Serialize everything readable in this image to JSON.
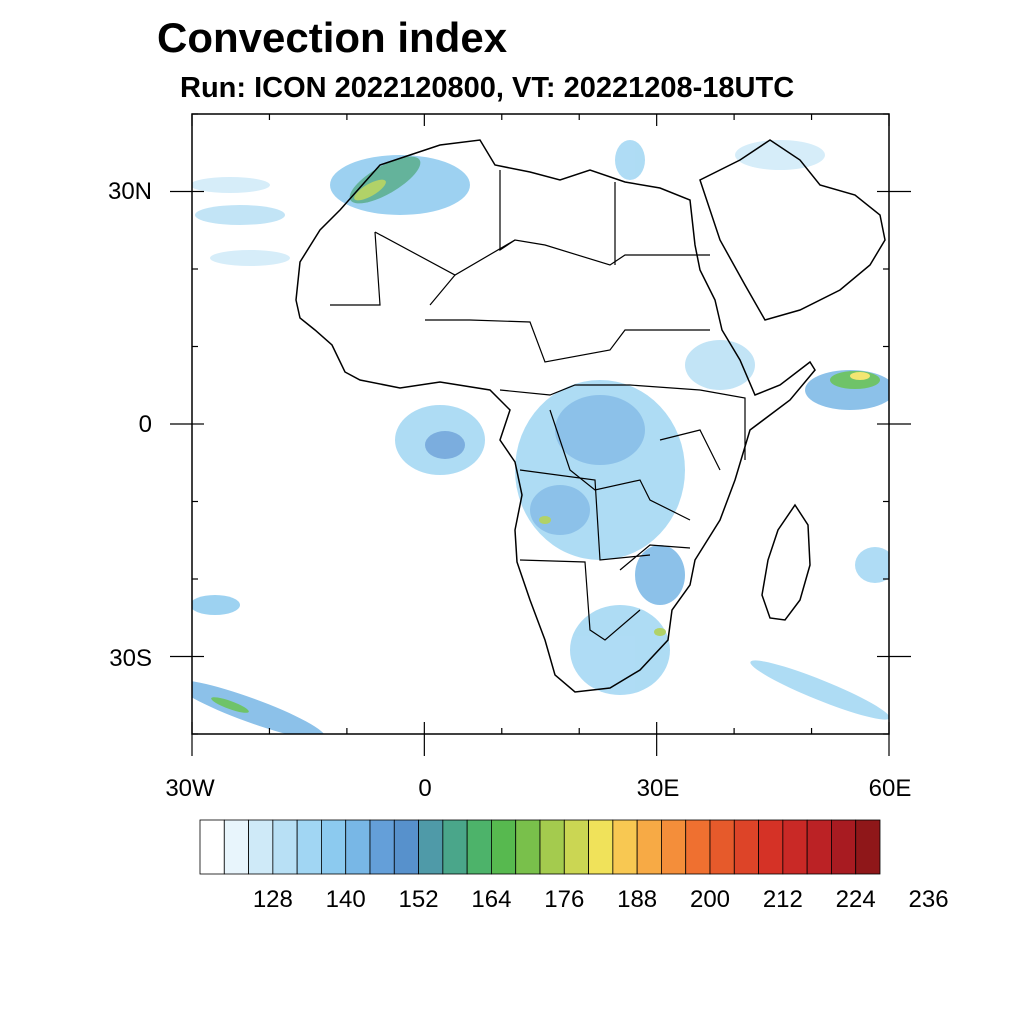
{
  "title": "Convection index",
  "subtitle": "Run: ICON 2022120800,  VT: 20221208-18UTC",
  "map": {
    "lon_range": [
      -30,
      60
    ],
    "lat_range": [
      -40,
      40
    ],
    "lat_ticks": [
      {
        "label": "30N"
      },
      {
        "label": "0"
      },
      {
        "label": "30S"
      }
    ],
    "lon_ticks": [
      {
        "label": "30W"
      },
      {
        "label": "0"
      },
      {
        "label": "30E"
      },
      {
        "label": "60E"
      }
    ]
  },
  "colorbar": {
    "colors": [
      "#ffffff",
      "#e8f5fc",
      "#cfeaf8",
      "#b8e0f5",
      "#a1d6f3",
      "#8ccaef",
      "#78b7e6",
      "#649fd9",
      "#5791cc",
      "#4f9aa8",
      "#4aa68a",
      "#4db36a",
      "#57b94f",
      "#79c04b",
      "#a4cb4e",
      "#cbd653",
      "#f0e25a",
      "#f8c852",
      "#f7aa45",
      "#f48e3a",
      "#ef7030",
      "#e65a2b",
      "#dd4428",
      "#d53226",
      "#c92926",
      "#bb2225",
      "#a81b21",
      "#8f1719"
    ],
    "labels": [
      "128",
      "140",
      "152",
      "164",
      "176",
      "188",
      "200",
      "212",
      "224",
      "236"
    ]
  }
}
